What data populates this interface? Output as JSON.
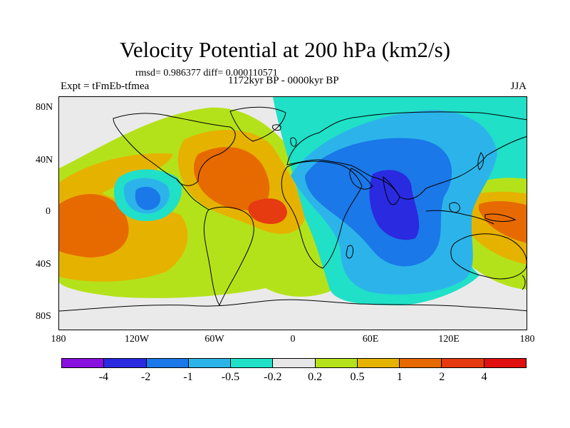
{
  "title": "Velocity Potential at 200 hPa (km2/s)",
  "stats_text": "rmsd= 0.986377 diff= 0.000110571",
  "experiment": "Expt = tFmEb-tfmea",
  "period": "1172kyr BP - 0000kyr BP",
  "season": "JJA",
  "lat_labels": [
    "80N",
    "40N",
    "0",
    "40S",
    "80S"
  ],
  "lon_labels": [
    "180",
    "120W",
    "60W",
    "0",
    "60E",
    "120E",
    "180"
  ],
  "colorbar": {
    "labels": [
      "-4",
      "-2",
      "-1",
      "-0.5",
      "-0.2",
      "0.2",
      "0.5",
      "1",
      "2",
      "4"
    ],
    "colors": [
      "#8a10e0",
      "#2a2ae0",
      "#1a78e8",
      "#2cb4ea",
      "#20e0c8",
      "#e6e6e6",
      "#b4e21a",
      "#e6b200",
      "#e66a00",
      "#e63a10",
      "#e01010"
    ]
  },
  "map_colors": {
    "background": "#eaeaea",
    "neg4": "#2a2ae0",
    "neg2": "#1a78e8",
    "neg1": "#2cb4ea",
    "neg05": "#20e0c8",
    "pos05": "#b4e21a",
    "pos1": "#e6b200",
    "pos2": "#e66a00",
    "pos4": "#e63a10"
  }
}
